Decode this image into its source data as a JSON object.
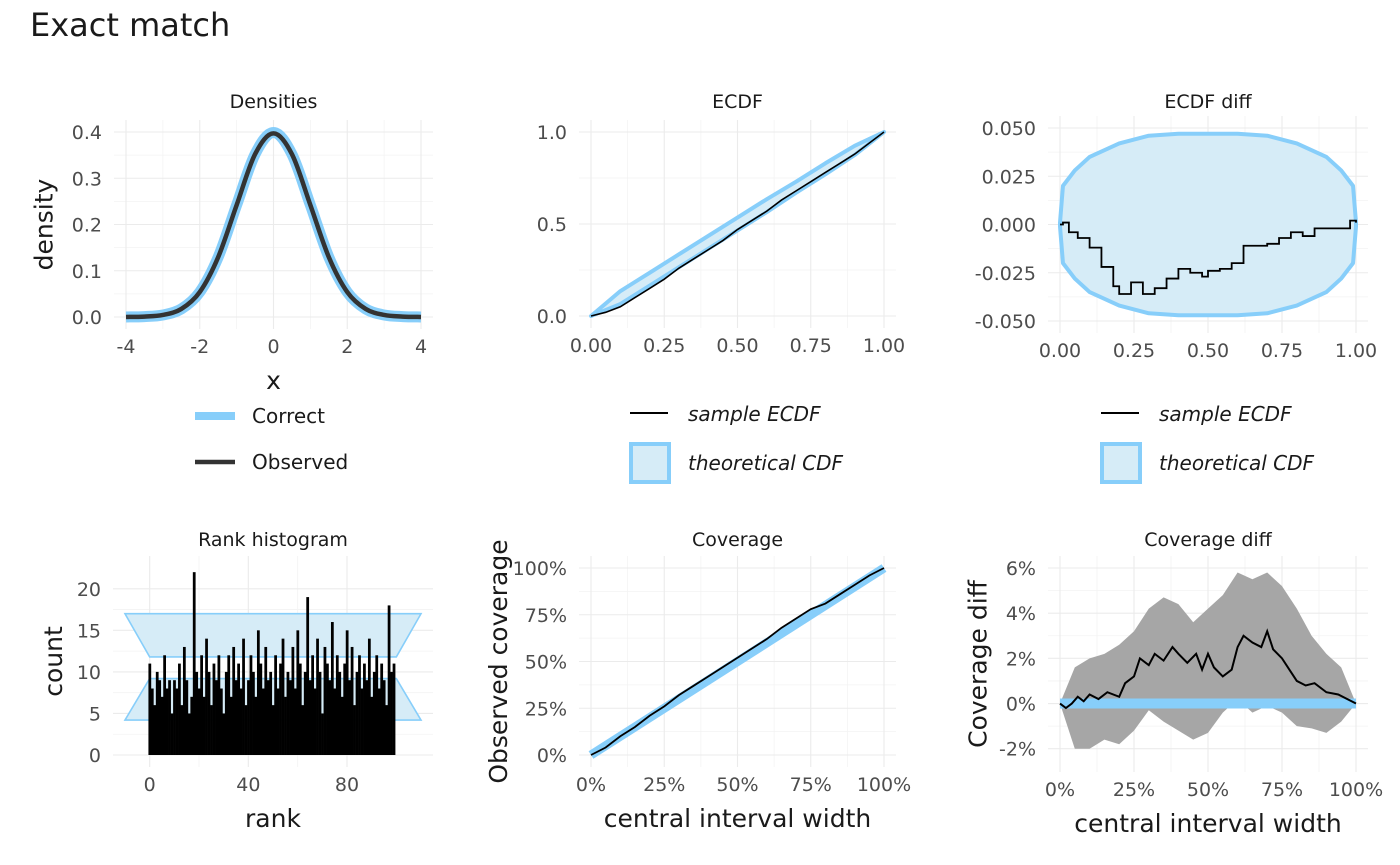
{
  "title": "Exact match",
  "colors": {
    "correct": "#87cefa",
    "band_fill": "#d6ecf7",
    "observed": "#333333",
    "ecdf_line": "#000000",
    "coverage_band": "#a6a6a6",
    "grid_major": "#ebebeb",
    "grid_minor": "#f3f3f3",
    "tick_text": "#4d4d4d"
  },
  "chart_data": [
    {
      "id": "densities",
      "type": "line",
      "title": "Densities",
      "xlabel": "x",
      "ylabel": "density",
      "xlim": [
        -4,
        4
      ],
      "ylim": [
        0,
        0.4
      ],
      "xticks": [
        -4,
        -2,
        0,
        2,
        4
      ],
      "yticks": [
        0.0,
        0.1,
        0.2,
        0.3,
        0.4
      ],
      "ytick_labels": [
        "0.0",
        "0.1",
        "0.2",
        "0.3",
        "0.4"
      ],
      "xtick_labels": [
        "-4",
        "-2",
        "0",
        "2",
        "4"
      ],
      "series": [
        {
          "name": "Correct",
          "x": [
            -4,
            -3.5,
            -3,
            -2.5,
            -2,
            -1.5,
            -1,
            -0.5,
            0,
            0.5,
            1,
            1.5,
            2,
            2.5,
            3,
            3.5,
            4
          ],
          "y": [
            0.0001,
            0.0009,
            0.0044,
            0.0175,
            0.054,
            0.1295,
            0.242,
            0.352,
            0.399,
            0.352,
            0.242,
            0.1295,
            0.054,
            0.0175,
            0.0044,
            0.0009,
            0.0001
          ]
        },
        {
          "name": "Observed",
          "x": [
            -4,
            -3.5,
            -3,
            -2.5,
            -2,
            -1.5,
            -1,
            -0.5,
            0,
            0.5,
            1,
            1.5,
            2,
            2.5,
            3,
            3.5,
            4
          ],
          "y": [
            0.0001,
            0.0009,
            0.0044,
            0.0175,
            0.054,
            0.1295,
            0.242,
            0.352,
            0.397,
            0.352,
            0.242,
            0.1295,
            0.054,
            0.0175,
            0.0044,
            0.0009,
            0.0001
          ]
        }
      ],
      "legend": [
        {
          "label": "Correct"
        },
        {
          "label": "Observed"
        }
      ]
    },
    {
      "id": "ecdf",
      "type": "line",
      "title": "ECDF",
      "xlim": [
        0,
        1
      ],
      "ylim": [
        0,
        1
      ],
      "xticks": [
        0,
        0.25,
        0.5,
        0.75,
        1
      ],
      "xtick_labels": [
        "0.00",
        "0.25",
        "0.50",
        "0.75",
        "1.00"
      ],
      "yticks": [
        0,
        0.5,
        1
      ],
      "ytick_labels": [
        "0.0",
        "0.5",
        "1.0"
      ],
      "series": [
        {
          "name": "sample ECDF",
          "x": [
            0,
            0.05,
            0.1,
            0.15,
            0.2,
            0.25,
            0.3,
            0.35,
            0.4,
            0.45,
            0.5,
            0.55,
            0.6,
            0.65,
            0.7,
            0.75,
            0.8,
            0.85,
            0.9,
            0.95,
            1.0
          ],
          "y": [
            0,
            0.02,
            0.05,
            0.1,
            0.15,
            0.2,
            0.26,
            0.31,
            0.36,
            0.41,
            0.47,
            0.52,
            0.57,
            0.63,
            0.68,
            0.73,
            0.78,
            0.83,
            0.88,
            0.94,
            1.0
          ]
        }
      ],
      "band": {
        "name": "theoretical CDF",
        "x": [
          0,
          0.1,
          0.2,
          0.3,
          0.4,
          0.5,
          0.6,
          0.7,
          0.8,
          0.9,
          1.0
        ],
        "lower": [
          0,
          0.065,
          0.165,
          0.265,
          0.365,
          0.465,
          0.565,
          0.67,
          0.77,
          0.875,
          1.0
        ],
        "upper": [
          0,
          0.135,
          0.235,
          0.335,
          0.435,
          0.535,
          0.635,
          0.73,
          0.83,
          0.925,
          1.0
        ]
      },
      "legend": [
        {
          "label": "sample ECDF"
        },
        {
          "label": "theoretical CDF"
        }
      ]
    },
    {
      "id": "ecdf-diff",
      "type": "line",
      "title": "ECDF diff",
      "xlim": [
        0,
        1
      ],
      "ylim": [
        -0.05,
        0.05
      ],
      "xticks": [
        0,
        0.25,
        0.5,
        0.75,
        1
      ],
      "xtick_labels": [
        "0.00",
        "0.25",
        "0.50",
        "0.75",
        "1.00"
      ],
      "yticks": [
        -0.05,
        -0.025,
        0,
        0.025,
        0.05
      ],
      "ytick_labels": [
        "-0.050",
        "-0.025",
        "0.000",
        "0.025",
        "0.050"
      ],
      "series": [
        {
          "name": "sample ECDF",
          "x": [
            0,
            0.01,
            0.03,
            0.06,
            0.1,
            0.14,
            0.18,
            0.2,
            0.24,
            0.28,
            0.32,
            0.36,
            0.4,
            0.44,
            0.48,
            0.5,
            0.54,
            0.58,
            0.62,
            0.66,
            0.7,
            0.74,
            0.78,
            0.82,
            0.86,
            0.9,
            0.94,
            0.98,
            1.0
          ],
          "y": [
            0,
            0.001,
            -0.004,
            -0.007,
            -0.012,
            -0.022,
            -0.032,
            -0.036,
            -0.03,
            -0.036,
            -0.033,
            -0.028,
            -0.023,
            -0.025,
            -0.027,
            -0.024,
            -0.023,
            -0.02,
            -0.011,
            -0.011,
            -0.01,
            -0.007,
            -0.004,
            -0.006,
            -0.002,
            -0.002,
            -0.002,
            0.002,
            0.001
          ]
        }
      ],
      "band": {
        "name": "theoretical CDF",
        "x": [
          0,
          0.01,
          0.05,
          0.1,
          0.2,
          0.3,
          0.4,
          0.5,
          0.6,
          0.7,
          0.8,
          0.9,
          0.95,
          0.99,
          1.0
        ],
        "lower": [
          -0.001,
          -0.02,
          -0.028,
          -0.035,
          -0.042,
          -0.046,
          -0.047,
          -0.047,
          -0.047,
          -0.046,
          -0.042,
          -0.035,
          -0.028,
          -0.02,
          -0.001
        ],
        "upper": [
          0.001,
          0.02,
          0.028,
          0.035,
          0.042,
          0.046,
          0.047,
          0.047,
          0.047,
          0.046,
          0.042,
          0.035,
          0.028,
          0.02,
          0.001
        ]
      },
      "legend": [
        {
          "label": "sample ECDF"
        },
        {
          "label": "theoretical CDF"
        }
      ]
    },
    {
      "id": "rank-histogram",
      "type": "bar",
      "title": "Rank histogram",
      "xlabel": "rank",
      "ylabel": "count",
      "xlim": [
        -10,
        110
      ],
      "ylim": [
        0,
        22.5
      ],
      "xticks": [
        0,
        40,
        80
      ],
      "xtick_labels": [
        "0",
        "40",
        "80"
      ],
      "yticks": [
        0,
        5,
        10,
        15,
        20
      ],
      "ytick_labels": [
        "0",
        "5",
        "10",
        "15",
        "20"
      ],
      "x": [
        0,
        1,
        2,
        3,
        4,
        5,
        6,
        7,
        8,
        9,
        10,
        11,
        12,
        13,
        14,
        15,
        16,
        17,
        18,
        19,
        20,
        21,
        22,
        23,
        24,
        25,
        26,
        27,
        28,
        29,
        30,
        31,
        32,
        33,
        34,
        35,
        36,
        37,
        38,
        39,
        40,
        41,
        42,
        43,
        44,
        45,
        46,
        47,
        48,
        49,
        50,
        51,
        52,
        53,
        54,
        55,
        56,
        57,
        58,
        59,
        60,
        61,
        62,
        63,
        64,
        65,
        66,
        67,
        68,
        69,
        70,
        71,
        72,
        73,
        74,
        75,
        76,
        77,
        78,
        79,
        80,
        81,
        82,
        83,
        84,
        85,
        86,
        87,
        88,
        89,
        90,
        91,
        92,
        93,
        94,
        95,
        96,
        97,
        98,
        99
      ],
      "values": [
        11,
        8,
        6,
        10,
        9,
        7,
        12,
        8,
        9,
        5,
        9,
        8,
        11,
        6,
        13,
        9,
        5,
        7,
        22,
        10,
        8,
        12,
        7,
        14,
        10,
        6,
        11,
        9,
        12,
        8,
        5,
        10,
        12,
        7,
        13,
        9,
        11,
        8,
        14,
        6,
        9,
        12,
        10,
        7,
        15,
        11,
        8,
        13,
        9,
        10,
        6,
        12,
        8,
        11,
        14,
        7,
        10,
        9,
        13,
        8,
        15,
        11,
        6,
        10,
        19,
        9,
        12,
        8,
        14,
        10,
        5,
        13,
        11,
        9,
        16,
        8,
        12,
        10,
        7,
        11,
        15,
        9,
        13,
        6,
        10,
        12,
        8,
        11,
        9,
        14,
        7,
        10,
        12,
        8,
        11,
        9,
        6,
        18,
        10,
        11
      ],
      "band": {
        "x": [
          -10,
          0,
          100,
          110
        ],
        "outer_lower": 4.2,
        "outer_upper": 17,
        "inner_lower": 9.2,
        "inner_upper": 11.8
      }
    },
    {
      "id": "coverage",
      "type": "line",
      "title": "Coverage",
      "xlabel": "central interval width",
      "ylabel": "Observed coverage",
      "xlim": [
        0,
        1
      ],
      "ylim": [
        0,
        1
      ],
      "xticks": [
        0,
        0.25,
        0.5,
        0.75,
        1
      ],
      "xtick_labels": [
        "0%",
        "25%",
        "50%",
        "75%",
        "100%"
      ],
      "yticks": [
        0,
        0.25,
        0.5,
        0.75,
        1
      ],
      "ytick_labels": [
        "0%",
        "25%",
        "50%",
        "75%",
        "100%"
      ],
      "series": [
        {
          "name": "Observed",
          "x": [
            0,
            0.05,
            0.1,
            0.15,
            0.2,
            0.25,
            0.3,
            0.35,
            0.4,
            0.45,
            0.5,
            0.55,
            0.6,
            0.65,
            0.7,
            0.75,
            0.8,
            0.85,
            0.9,
            0.95,
            1.0
          ],
          "y": [
            0,
            0.04,
            0.1,
            0.15,
            0.21,
            0.26,
            0.32,
            0.37,
            0.42,
            0.47,
            0.52,
            0.57,
            0.62,
            0.68,
            0.73,
            0.78,
            0.81,
            0.86,
            0.91,
            0.96,
            1.0
          ]
        },
        {
          "name": "Correct",
          "x": [
            0,
            1
          ],
          "y": [
            0,
            1
          ]
        }
      ],
      "band": {
        "x": [
          0,
          0.25,
          0.5,
          0.75,
          1.0
        ],
        "lower": [
          0,
          0.23,
          0.48,
          0.73,
          1.0
        ],
        "upper": [
          0,
          0.275,
          0.525,
          0.775,
          1.0
        ]
      }
    },
    {
      "id": "coverage-diff",
      "type": "line",
      "title": "Coverage diff",
      "xlabel": "central interval width",
      "ylabel": "Coverage diff",
      "xlim": [
        0,
        1
      ],
      "ylim": [
        -0.025,
        0.06
      ],
      "xticks": [
        0,
        0.25,
        0.5,
        0.75,
        1
      ],
      "xtick_labels": [
        "0%",
        "25%",
        "50%",
        "75%",
        "100%"
      ],
      "yticks": [
        -0.02,
        0,
        0.02,
        0.04,
        0.06
      ],
      "ytick_labels": [
        "-2%",
        "0%",
        "2%",
        "4%",
        "6%"
      ],
      "series": [
        {
          "name": "Observed",
          "x": [
            0,
            0.02,
            0.04,
            0.06,
            0.08,
            0.1,
            0.13,
            0.16,
            0.2,
            0.22,
            0.25,
            0.27,
            0.3,
            0.32,
            0.35,
            0.38,
            0.4,
            0.43,
            0.46,
            0.48,
            0.5,
            0.52,
            0.55,
            0.58,
            0.6,
            0.62,
            0.65,
            0.68,
            0.7,
            0.72,
            0.75,
            0.78,
            0.8,
            0.83,
            0.86,
            0.9,
            0.94,
            0.97,
            1.0
          ],
          "y": [
            0,
            -0.002,
            0,
            0.003,
            0.001,
            0.004,
            0.002,
            0.005,
            0.003,
            0.009,
            0.012,
            0.02,
            0.017,
            0.022,
            0.019,
            0.025,
            0.022,
            0.018,
            0.022,
            0.015,
            0.022,
            0.016,
            0.012,
            0.015,
            0.025,
            0.03,
            0.027,
            0.025,
            0.032,
            0.024,
            0.02,
            0.014,
            0.01,
            0.008,
            0.009,
            0.005,
            0.004,
            0.002,
            0
          ]
        },
        {
          "name": "Correct",
          "x": [
            0,
            1
          ],
          "y": [
            0,
            0
          ]
        }
      ],
      "band": {
        "x": [
          0,
          0.05,
          0.1,
          0.15,
          0.2,
          0.25,
          0.3,
          0.35,
          0.4,
          0.45,
          0.5,
          0.55,
          0.6,
          0.65,
          0.7,
          0.75,
          0.8,
          0.85,
          0.9,
          0.95,
          1.0
        ],
        "lower": [
          0,
          -0.02,
          -0.02,
          -0.016,
          -0.018,
          -0.012,
          -0.003,
          -0.008,
          -0.012,
          -0.016,
          -0.013,
          -0.004,
          0.002,
          -0.004,
          -0.001,
          -0.004,
          -0.01,
          -0.011,
          -0.013,
          -0.008,
          0
        ],
        "upper": [
          0,
          0.016,
          0.02,
          0.022,
          0.026,
          0.032,
          0.042,
          0.047,
          0.044,
          0.036,
          0.042,
          0.048,
          0.058,
          0.055,
          0.058,
          0.052,
          0.042,
          0.03,
          0.022,
          0.016,
          0
        ]
      }
    }
  ]
}
